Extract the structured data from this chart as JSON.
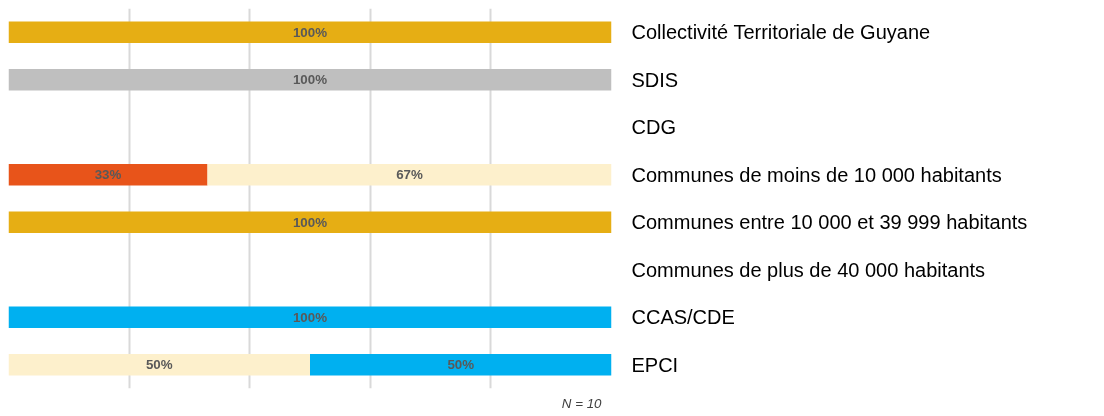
{
  "chart_data": {
    "type": "bar",
    "orientation": "horizontal",
    "stacked": true,
    "grid": "x",
    "tick_labels": "y",
    "categories": [
      "Collectivité Territoriale de Guyane",
      "SDIS",
      "CDG",
      "Communes de moins de 10 000 habitants",
      "Communes entre 10 000 et 39 999 habitants",
      "Communes de plus de 40 000 habitants",
      "CCAS/CDE",
      "EPCI"
    ],
    "series": [
      {
        "color": "#e8541a",
        "values": [
          null,
          null,
          null,
          33,
          null,
          null,
          null,
          null
        ],
        "value_labels": [
          null,
          null,
          null,
          "33%",
          null,
          null,
          null,
          null
        ]
      },
      {
        "color": "#fdf0cc",
        "values": [
          null,
          null,
          null,
          67,
          null,
          null,
          null,
          50
        ],
        "value_labels": [
          null,
          null,
          null,
          "67%",
          null,
          null,
          null,
          "50%"
        ]
      },
      {
        "color": "#e6ae14",
        "values": [
          100,
          null,
          null,
          null,
          100,
          null,
          null,
          null
        ],
        "value_labels": [
          "100%",
          null,
          null,
          null,
          "100%",
          null,
          null,
          null
        ]
      },
      {
        "color": "#bfbfbf",
        "values": [
          null,
          100,
          null,
          null,
          null,
          null,
          null,
          null
        ],
        "value_labels": [
          null,
          "100%",
          null,
          null,
          null,
          null,
          null,
          null
        ]
      },
      {
        "color": "#00b0f0",
        "values": [
          null,
          null,
          null,
          null,
          null,
          null,
          100,
          50
        ],
        "value_labels": [
          null,
          null,
          null,
          null,
          null,
          null,
          "100%",
          "50%"
        ]
      }
    ],
    "annotations": [
      "N = 10"
    ]
  }
}
